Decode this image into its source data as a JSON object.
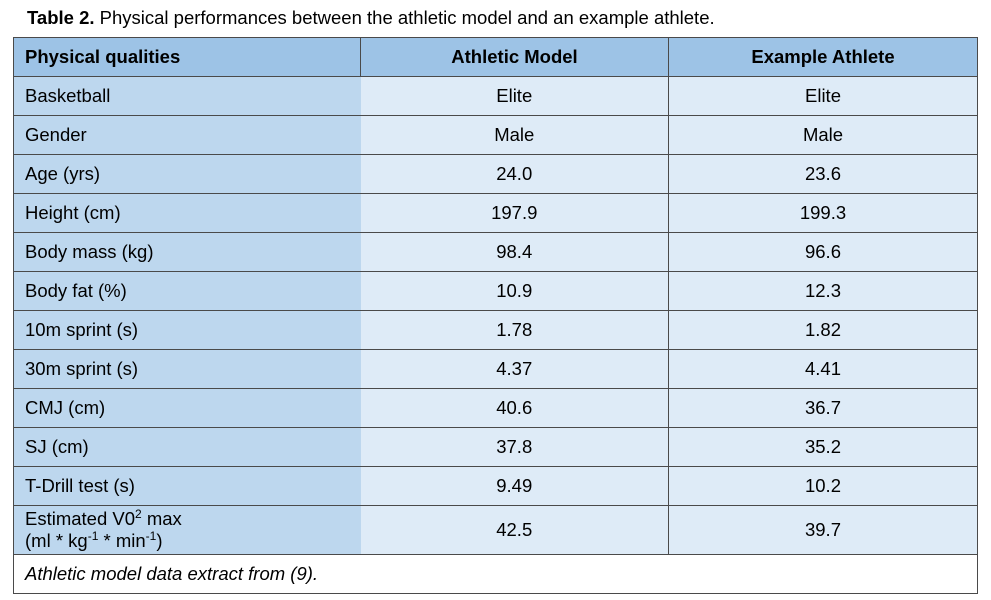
{
  "caption": {
    "label": "Table 2.",
    "text": " Physical performances between the athletic model and an example athlete."
  },
  "table": {
    "headers": [
      "Physical qualities",
      "Athletic Model",
      "Example Athlete"
    ],
    "rows": [
      {
        "label": "Basketball",
        "model": "Elite",
        "athlete": "Elite"
      },
      {
        "label": "Gender",
        "model": "Male",
        "athlete": "Male"
      },
      {
        "label": "Age (yrs)",
        "model": "24.0",
        "athlete": "23.6"
      },
      {
        "label": "Height (cm)",
        "model": "197.9",
        "athlete": "199.3"
      },
      {
        "label": "Body mass (kg)",
        "model": "98.4",
        "athlete": "96.6"
      },
      {
        "label": "Body fat (%)",
        "model": "10.9",
        "athlete": "12.3"
      },
      {
        "label": "10m sprint (s)",
        "model": "1.78",
        "athlete": "1.82"
      },
      {
        "label": "30m sprint (s)",
        "model": "4.37",
        "athlete": "4.41"
      },
      {
        "label": "CMJ (cm)",
        "model": "40.6",
        "athlete": "36.7"
      },
      {
        "label": "SJ (cm)",
        "model": "37.8",
        "athlete": "35.2"
      },
      {
        "label": "T-Drill test (s)",
        "model": "9.49",
        "athlete": "10.2"
      }
    ],
    "vo2_row": {
      "label_line1_pre": "Estimated V0",
      "label_line1_sup": "2",
      "label_line1_post": " max",
      "label_line2_pre": "(ml * kg",
      "label_line2_sup1": "-1",
      "label_line2_mid": " * min",
      "label_line2_sup2": "-1",
      "label_line2_post": ")",
      "model": "42.5",
      "athlete": "39.7"
    },
    "footnote": "Athletic model data extract from (9)."
  }
}
